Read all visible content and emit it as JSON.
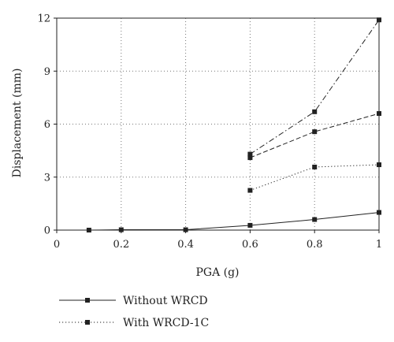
{
  "chart_data": {
    "type": "line",
    "xlabel": "PGA (g)",
    "ylabel": "Displacement (mm)",
    "xlim": [
      0,
      1
    ],
    "ylim": [
      0,
      12
    ],
    "xticks": [
      "0",
      "0.2",
      "0.4",
      "0.6",
      "0.8",
      "1"
    ],
    "yticks": [
      "0",
      "3",
      "6",
      "9",
      "12"
    ],
    "grid": "dotted",
    "legend_placement": "bottom-left",
    "series": [
      {
        "name": "Without WRCD",
        "line_style": "solid",
        "marker": "square",
        "x": [
          0.1,
          0.2,
          0.4,
          0.6,
          0.8,
          1.0
        ],
        "y": [
          0.0,
          0.02,
          0.02,
          0.27,
          0.6,
          1.0
        ]
      },
      {
        "name": "With WRCD-1C",
        "line_style": "dotted",
        "marker": "square",
        "x": [
          0.6,
          0.8,
          1.0
        ],
        "y": [
          2.25,
          3.57,
          3.7
        ]
      },
      {
        "line_style": "dashed",
        "marker": "square",
        "x": [
          0.6,
          0.8,
          1.0
        ],
        "y": [
          4.1,
          5.57,
          6.6
        ]
      },
      {
        "line_style": "dashdot",
        "marker": "square",
        "x": [
          0.6,
          0.8,
          1.0
        ],
        "y": [
          4.3,
          6.7,
          11.9
        ]
      }
    ]
  }
}
